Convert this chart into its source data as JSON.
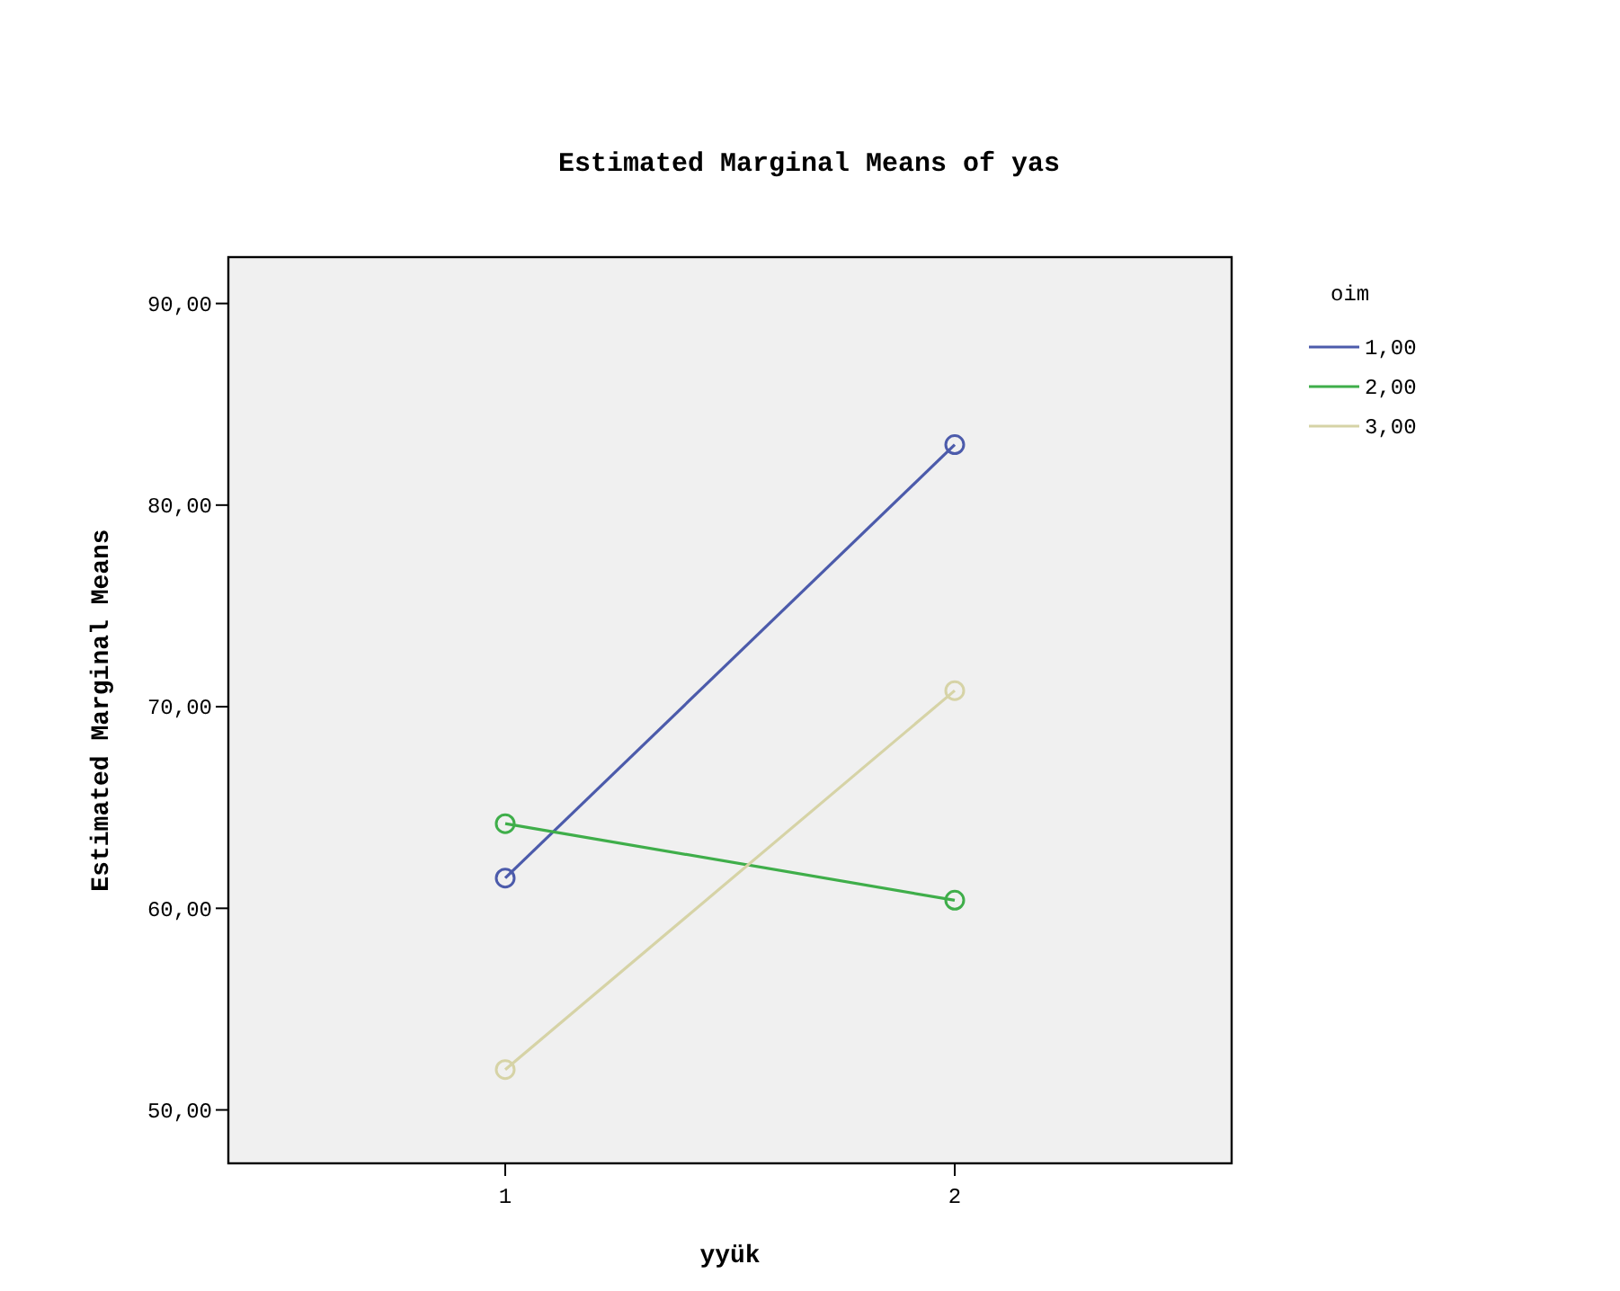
{
  "chart_data": {
    "type": "line",
    "title": "Estimated Marginal Means of yas",
    "xlabel": "yyük",
    "ylabel": "Estimated Marginal Means",
    "legend_title": "oim",
    "categories": [
      "1",
      "2"
    ],
    "series": [
      {
        "name": "1,00",
        "color": "#4c5bab",
        "values": [
          61.5,
          83.0
        ]
      },
      {
        "name": "2,00",
        "color": "#3fae4a",
        "values": [
          64.2,
          60.4
        ]
      },
      {
        "name": "3,00",
        "color": "#d6d3a6",
        "values": [
          52.0,
          70.8
        ]
      }
    ],
    "ylim": [
      47.35,
      92.3
    ],
    "yticks": [
      {
        "value": 50,
        "label": "50,00"
      },
      {
        "value": 60,
        "label": "60,00"
      },
      {
        "value": 70,
        "label": "70,00"
      },
      {
        "value": 80,
        "label": "80,00"
      },
      {
        "value": 90,
        "label": "90,00"
      }
    ],
    "marker": "circle",
    "legend": "top right",
    "grid": false
  }
}
